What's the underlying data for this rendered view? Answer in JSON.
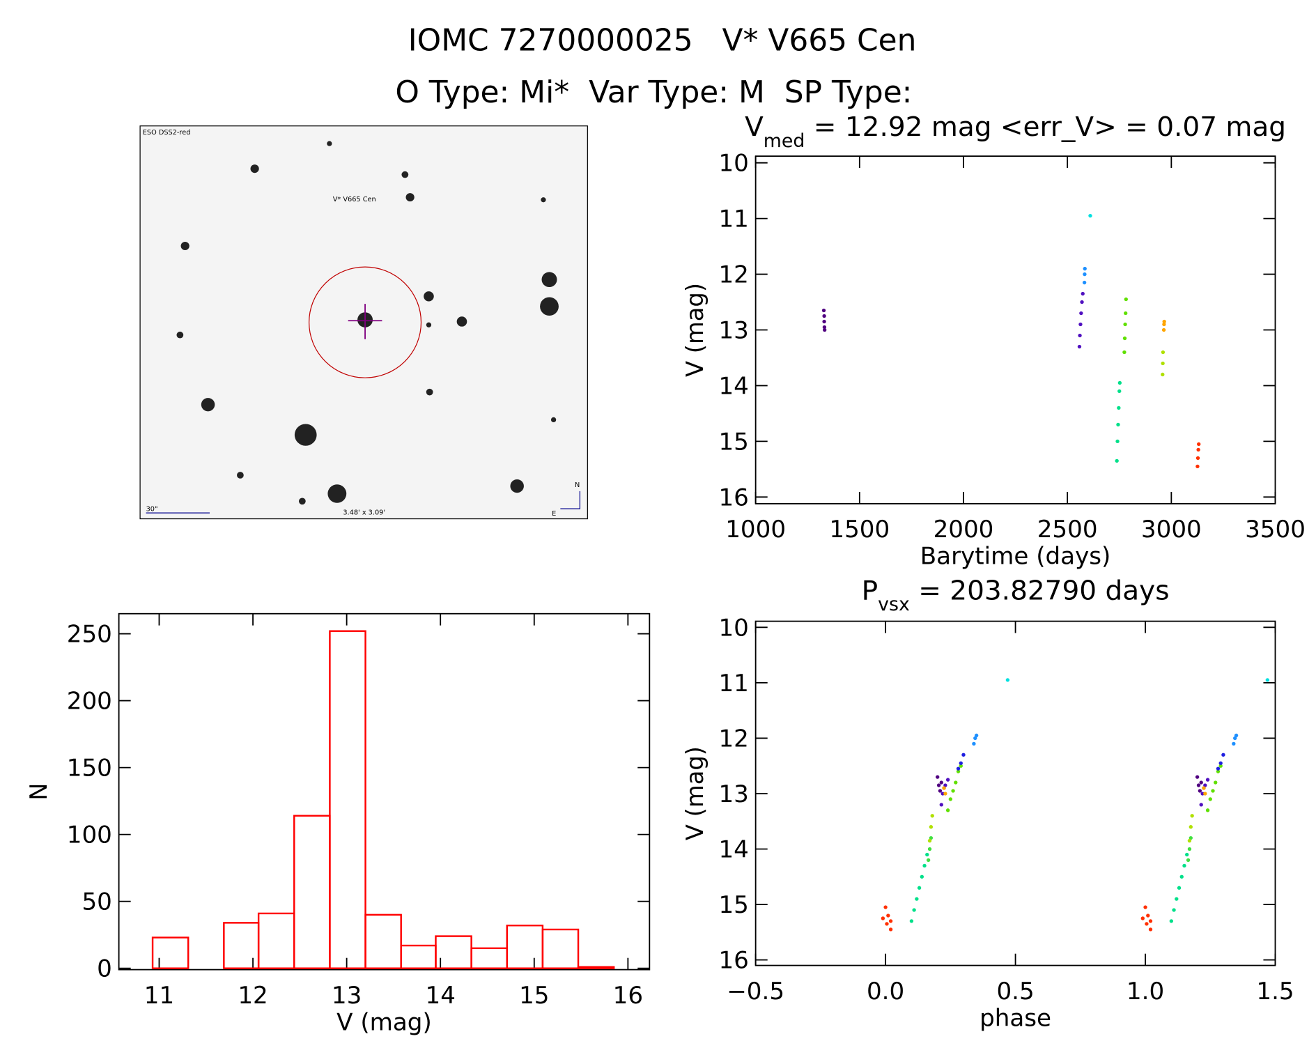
{
  "header": {
    "title": "IOMC 7270000025   V* V665 Cen",
    "subtitle": "O Type: Mi*  Var Type: M  SP Type:"
  },
  "image": {
    "labels": [
      "ESO DSS2-red",
      "V* V665 Cen",
      "30\"",
      "3.48' x 3.09'",
      "N",
      "E"
    ]
  },
  "chart_data": [
    {
      "type": "scatter",
      "title": [
        "V",
        "med",
        " = 12.92 mag <err_V> = 0.07 mag"
      ],
      "x_label": "Barytime (days)",
      "y_label": "V (mag)",
      "xlim": [
        1000,
        3500
      ],
      "ylim": [
        16.12,
        9.88
      ],
      "xticks": [
        1000,
        1500,
        2000,
        2500,
        3000,
        3500
      ],
      "yticks": [
        10,
        11,
        12,
        13,
        14,
        15,
        16
      ],
      "series": [
        {
          "color": "#500080",
          "x": [
            1328,
            1330,
            1330,
            1331,
            1332
          ],
          "values": [
            12.65,
            12.75,
            12.85,
            12.95,
            13.0
          ]
        },
        {
          "color": "#5010c0",
          "x": [
            2558,
            2560,
            2563,
            2566,
            2570,
            2574
          ],
          "values": [
            13.3,
            13.1,
            12.9,
            12.7,
            12.5,
            12.35
          ]
        },
        {
          "color": "#1e90ff",
          "x": [
            2582,
            2583,
            2584
          ],
          "values": [
            12.15,
            12.0,
            11.9
          ]
        },
        {
          "color": "#00e0e0",
          "x": [
            2610
          ],
          "values": [
            10.95
          ]
        },
        {
          "color": "#60e000",
          "x": [
            2774,
            2776,
            2778,
            2780,
            2782
          ],
          "values": [
            13.4,
            13.15,
            12.9,
            12.7,
            12.45
          ]
        },
        {
          "color": "#00e08a",
          "x": [
            2738,
            2741,
            2744,
            2747,
            2750,
            2752
          ],
          "values": [
            15.35,
            15.0,
            14.7,
            14.4,
            14.1,
            13.95
          ]
        },
        {
          "color": "#b0e000",
          "x": [
            2958,
            2959,
            2960
          ],
          "values": [
            13.8,
            13.6,
            13.4
          ]
        },
        {
          "color": "#ffa500",
          "x": [
            2964,
            2965,
            2966
          ],
          "values": [
            13.0,
            12.9,
            12.85
          ]
        },
        {
          "color": "#ff3000",
          "x": [
            3126,
            3128,
            3130,
            3132
          ],
          "values": [
            15.45,
            15.3,
            15.15,
            15.05
          ]
        }
      ]
    },
    {
      "type": "histogram",
      "x_label": "V (mag)",
      "y_label": "N",
      "color": "#ff0000",
      "xlim": [
        10.57,
        16.23
      ],
      "ylim": [
        -1,
        265
      ],
      "xticks": [
        11,
        12,
        13,
        14,
        15,
        16
      ],
      "yticks": [
        0,
        50,
        100,
        150,
        200,
        250
      ],
      "bins": [
        10.93,
        11.31,
        11.69,
        12.06,
        12.44,
        12.82,
        13.2,
        13.58,
        13.95,
        14.33,
        14.71,
        15.09,
        15.47,
        15.85
      ],
      "values": [
        23,
        0,
        34,
        41,
        114,
        252,
        40,
        17,
        24,
        15,
        32,
        29,
        1
      ]
    },
    {
      "type": "scatter",
      "title": [
        "P",
        "vsx",
        " = 203.82790 days"
      ],
      "x_label": "phase",
      "y_label": "V (mag)",
      "xlim": [
        -0.5,
        1.5
      ],
      "ylim": [
        16.1,
        9.89
      ],
      "xticks": [
        {
          "value": -0.5,
          "label": "−0.5"
        },
        {
          "value": 0,
          "label": "0.0"
        },
        0.5,
        {
          "value": 1,
          "label": "1.0"
        },
        1.5
      ],
      "yticks": [
        10,
        11,
        12,
        13,
        14,
        15,
        16
      ],
      "series": [
        {
          "color": "#ff3000",
          "x": [
            -0.01,
            0.0,
            0.005,
            0.01,
            0.02,
            0.02,
            0.99,
            1.0,
            1.005,
            1.01,
            1.02,
            1.02
          ],
          "values": [
            15.25,
            15.05,
            15.35,
            15.2,
            15.45,
            15.3,
            15.25,
            15.05,
            15.35,
            15.2,
            15.45,
            15.3
          ]
        },
        {
          "color": "#00e08a",
          "x": [
            0.1,
            0.11,
            0.12,
            0.13,
            0.14,
            0.15,
            0.16,
            1.1,
            1.11,
            1.12,
            1.13,
            1.14,
            1.15,
            1.16
          ],
          "values": [
            15.3,
            15.1,
            14.9,
            14.7,
            14.5,
            14.3,
            14.1,
            15.3,
            15.1,
            14.9,
            14.7,
            14.5,
            14.3,
            14.1
          ]
        },
        {
          "color": "#40e040",
          "x": [
            0.165,
            0.17,
            0.175,
            1.165,
            1.17,
            1.175
          ],
          "values": [
            14.2,
            14.0,
            13.8,
            14.2,
            14.0,
            13.8
          ]
        },
        {
          "color": "#b0e000",
          "x": [
            0.17,
            0.175,
            0.18,
            1.17,
            1.175,
            1.18
          ],
          "values": [
            13.85,
            13.6,
            13.4,
            13.85,
            13.6,
            13.4
          ]
        },
        {
          "color": "#500080",
          "x": [
            0.2,
            0.205,
            0.21,
            0.215,
            1.2,
            1.205,
            1.21,
            1.215
          ],
          "values": [
            12.7,
            12.85,
            12.95,
            12.8,
            12.7,
            12.85,
            12.95,
            12.8
          ]
        },
        {
          "color": "#5010c0",
          "x": [
            0.215,
            0.22,
            0.225,
            0.23,
            0.24,
            1.215,
            1.22,
            1.225,
            1.23,
            1.24
          ],
          "values": [
            13.2,
            13.0,
            12.9,
            12.85,
            12.75,
            13.2,
            13.0,
            12.9,
            12.85,
            12.75
          ]
        },
        {
          "color": "#ffa500",
          "x": [
            0.225,
            0.23,
            1.225,
            1.23
          ],
          "values": [
            12.9,
            13.0,
            12.9,
            13.0
          ]
        },
        {
          "color": "#60e000",
          "x": [
            0.24,
            0.25,
            0.26,
            0.27,
            0.28,
            0.29,
            1.24,
            1.25,
            1.26,
            1.27,
            1.28,
            1.29
          ],
          "values": [
            13.3,
            13.1,
            12.95,
            12.8,
            12.6,
            12.5,
            13.3,
            13.1,
            12.95,
            12.8,
            12.6,
            12.5
          ]
        },
        {
          "color": "#2020e0",
          "x": [
            0.28,
            0.29,
            0.3,
            1.28,
            1.29,
            1.3
          ],
          "values": [
            12.55,
            12.45,
            12.3,
            12.55,
            12.45,
            12.3
          ]
        },
        {
          "color": "#1e90ff",
          "x": [
            0.34,
            0.345,
            0.35,
            1.34,
            1.345,
            1.35
          ],
          "values": [
            12.1,
            12.0,
            11.95,
            12.1,
            12.0,
            11.95
          ]
        },
        {
          "color": "#00e0e0",
          "x": [
            0.47,
            1.47
          ],
          "values": [
            10.95,
            10.95
          ]
        }
      ]
    }
  ]
}
